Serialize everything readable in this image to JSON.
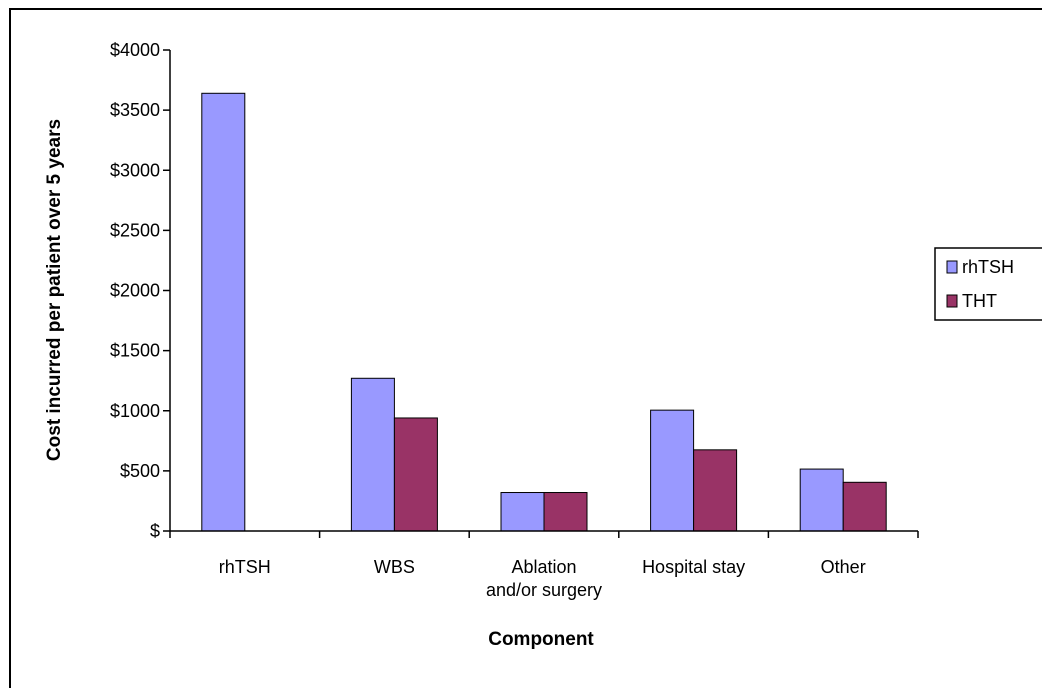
{
  "chart_data": {
    "type": "bar",
    "title": "",
    "xlabel": "Component",
    "ylabel": "Cost incurred per patient over 5 years",
    "categories": [
      [
        "rhTSH"
      ],
      [
        "WBS"
      ],
      [
        "Ablation",
        "and/or surgery"
      ],
      [
        "Hospital stay"
      ],
      [
        "Other"
      ]
    ],
    "series": [
      {
        "name": "rhTSH",
        "values": [
          3640,
          1270,
          320,
          1005,
          515
        ],
        "color": "#9999ff"
      },
      {
        "name": "THT",
        "values": [
          0,
          940,
          320,
          675,
          405
        ],
        "color": "#993366"
      }
    ],
    "ylim": [
      0,
      4000
    ],
    "yticks": [
      0,
      500,
      1000,
      1500,
      2000,
      2500,
      3000,
      3500,
      4000
    ],
    "ytick_labels": [
      "$",
      "$500",
      "$1000",
      "$1500",
      "$2000",
      "$2500",
      "$3000",
      "$3500",
      "$4000"
    ],
    "grid": false,
    "legend_position": "right"
  }
}
